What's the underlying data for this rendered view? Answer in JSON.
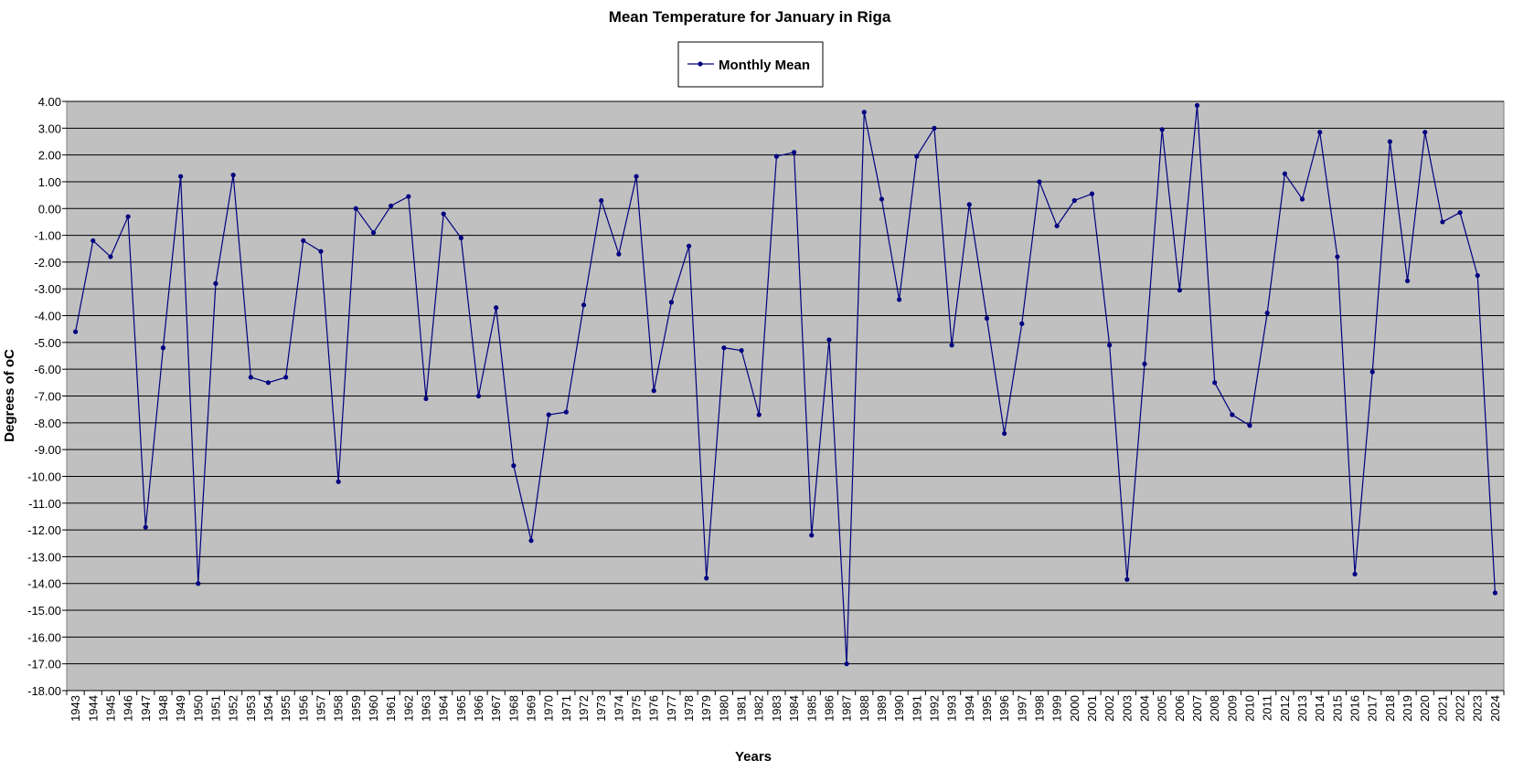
{
  "chart_data": {
    "type": "line",
    "title": "Mean Temperature for January in Riga",
    "xlabel": "Years",
    "ylabel": "Degrees of  oC",
    "ylim": [
      -18,
      4
    ],
    "y_tick_step": 1,
    "y_tick_labels": [
      "4.00",
      "3.00",
      "2.00",
      "1.00",
      "0.00",
      "-1.00",
      "-2.00",
      "-3.00",
      "-4.00",
      "-5.00",
      "-6.00",
      "-7.00",
      "-8.00",
      "-9.00",
      "-10.00",
      "-11.00",
      "-12.00",
      "-13.00",
      "-14.00",
      "-15.00",
      "-16.00",
      "-17.00",
      "-18.00"
    ],
    "grid": true,
    "plot_background": "#c0c0c0",
    "line_color": "#000080",
    "legend": {
      "position": "top-center",
      "entries": [
        "Monthly Mean"
      ]
    },
    "x": [
      1943,
      1944,
      1945,
      1946,
      1947,
      1948,
      1949,
      1950,
      1951,
      1952,
      1953,
      1954,
      1955,
      1956,
      1957,
      1958,
      1959,
      1960,
      1961,
      1962,
      1963,
      1964,
      1965,
      1966,
      1967,
      1968,
      1969,
      1970,
      1971,
      1972,
      1973,
      1974,
      1975,
      1976,
      1977,
      1978,
      1979,
      1980,
      1981,
      1982,
      1983,
      1984,
      1985,
      1986,
      1987,
      1988,
      1989,
      1990,
      1991,
      1992,
      1993,
      1994,
      1995,
      1996,
      1997,
      1998,
      1999,
      2000,
      2001,
      2002,
      2003,
      2004,
      2005,
      2006,
      2007,
      2008,
      2009,
      2010,
      2011,
      2012,
      2013,
      2014,
      2015,
      2016,
      2017,
      2018,
      2019,
      2020,
      2021,
      2022,
      2023,
      2024
    ],
    "series": [
      {
        "name": "Monthly Mean",
        "values": [
          -4.6,
          -1.2,
          -1.8,
          -0.3,
          -11.9,
          -5.2,
          1.2,
          -14.0,
          -2.8,
          1.25,
          -6.3,
          -6.5,
          -6.3,
          -1.2,
          -1.6,
          -10.2,
          0.0,
          -0.9,
          0.1,
          0.45,
          -7.1,
          -0.2,
          -1.1,
          -7.0,
          -3.7,
          -9.6,
          -12.4,
          -7.7,
          -7.6,
          -3.6,
          0.3,
          -1.7,
          1.2,
          -6.8,
          -3.5,
          -1.4,
          -13.8,
          -5.2,
          -5.3,
          -7.7,
          1.95,
          2.1,
          -12.2,
          -4.9,
          -17.0,
          3.6,
          0.35,
          -3.4,
          1.95,
          3.0,
          -5.1,
          0.15,
          -4.1,
          -8.4,
          -4.3,
          1.0,
          -0.65,
          0.3,
          0.55,
          -5.1,
          -13.85,
          -5.8,
          2.95,
          -3.05,
          3.85,
          -6.5,
          -7.7,
          -8.1,
          -3.9,
          1.3,
          0.35,
          2.85,
          -1.8,
          -13.65,
          -6.1,
          2.5,
          -2.7,
          2.85,
          -0.5,
          -0.15,
          -2.5,
          -14.35
        ]
      }
    ]
  }
}
